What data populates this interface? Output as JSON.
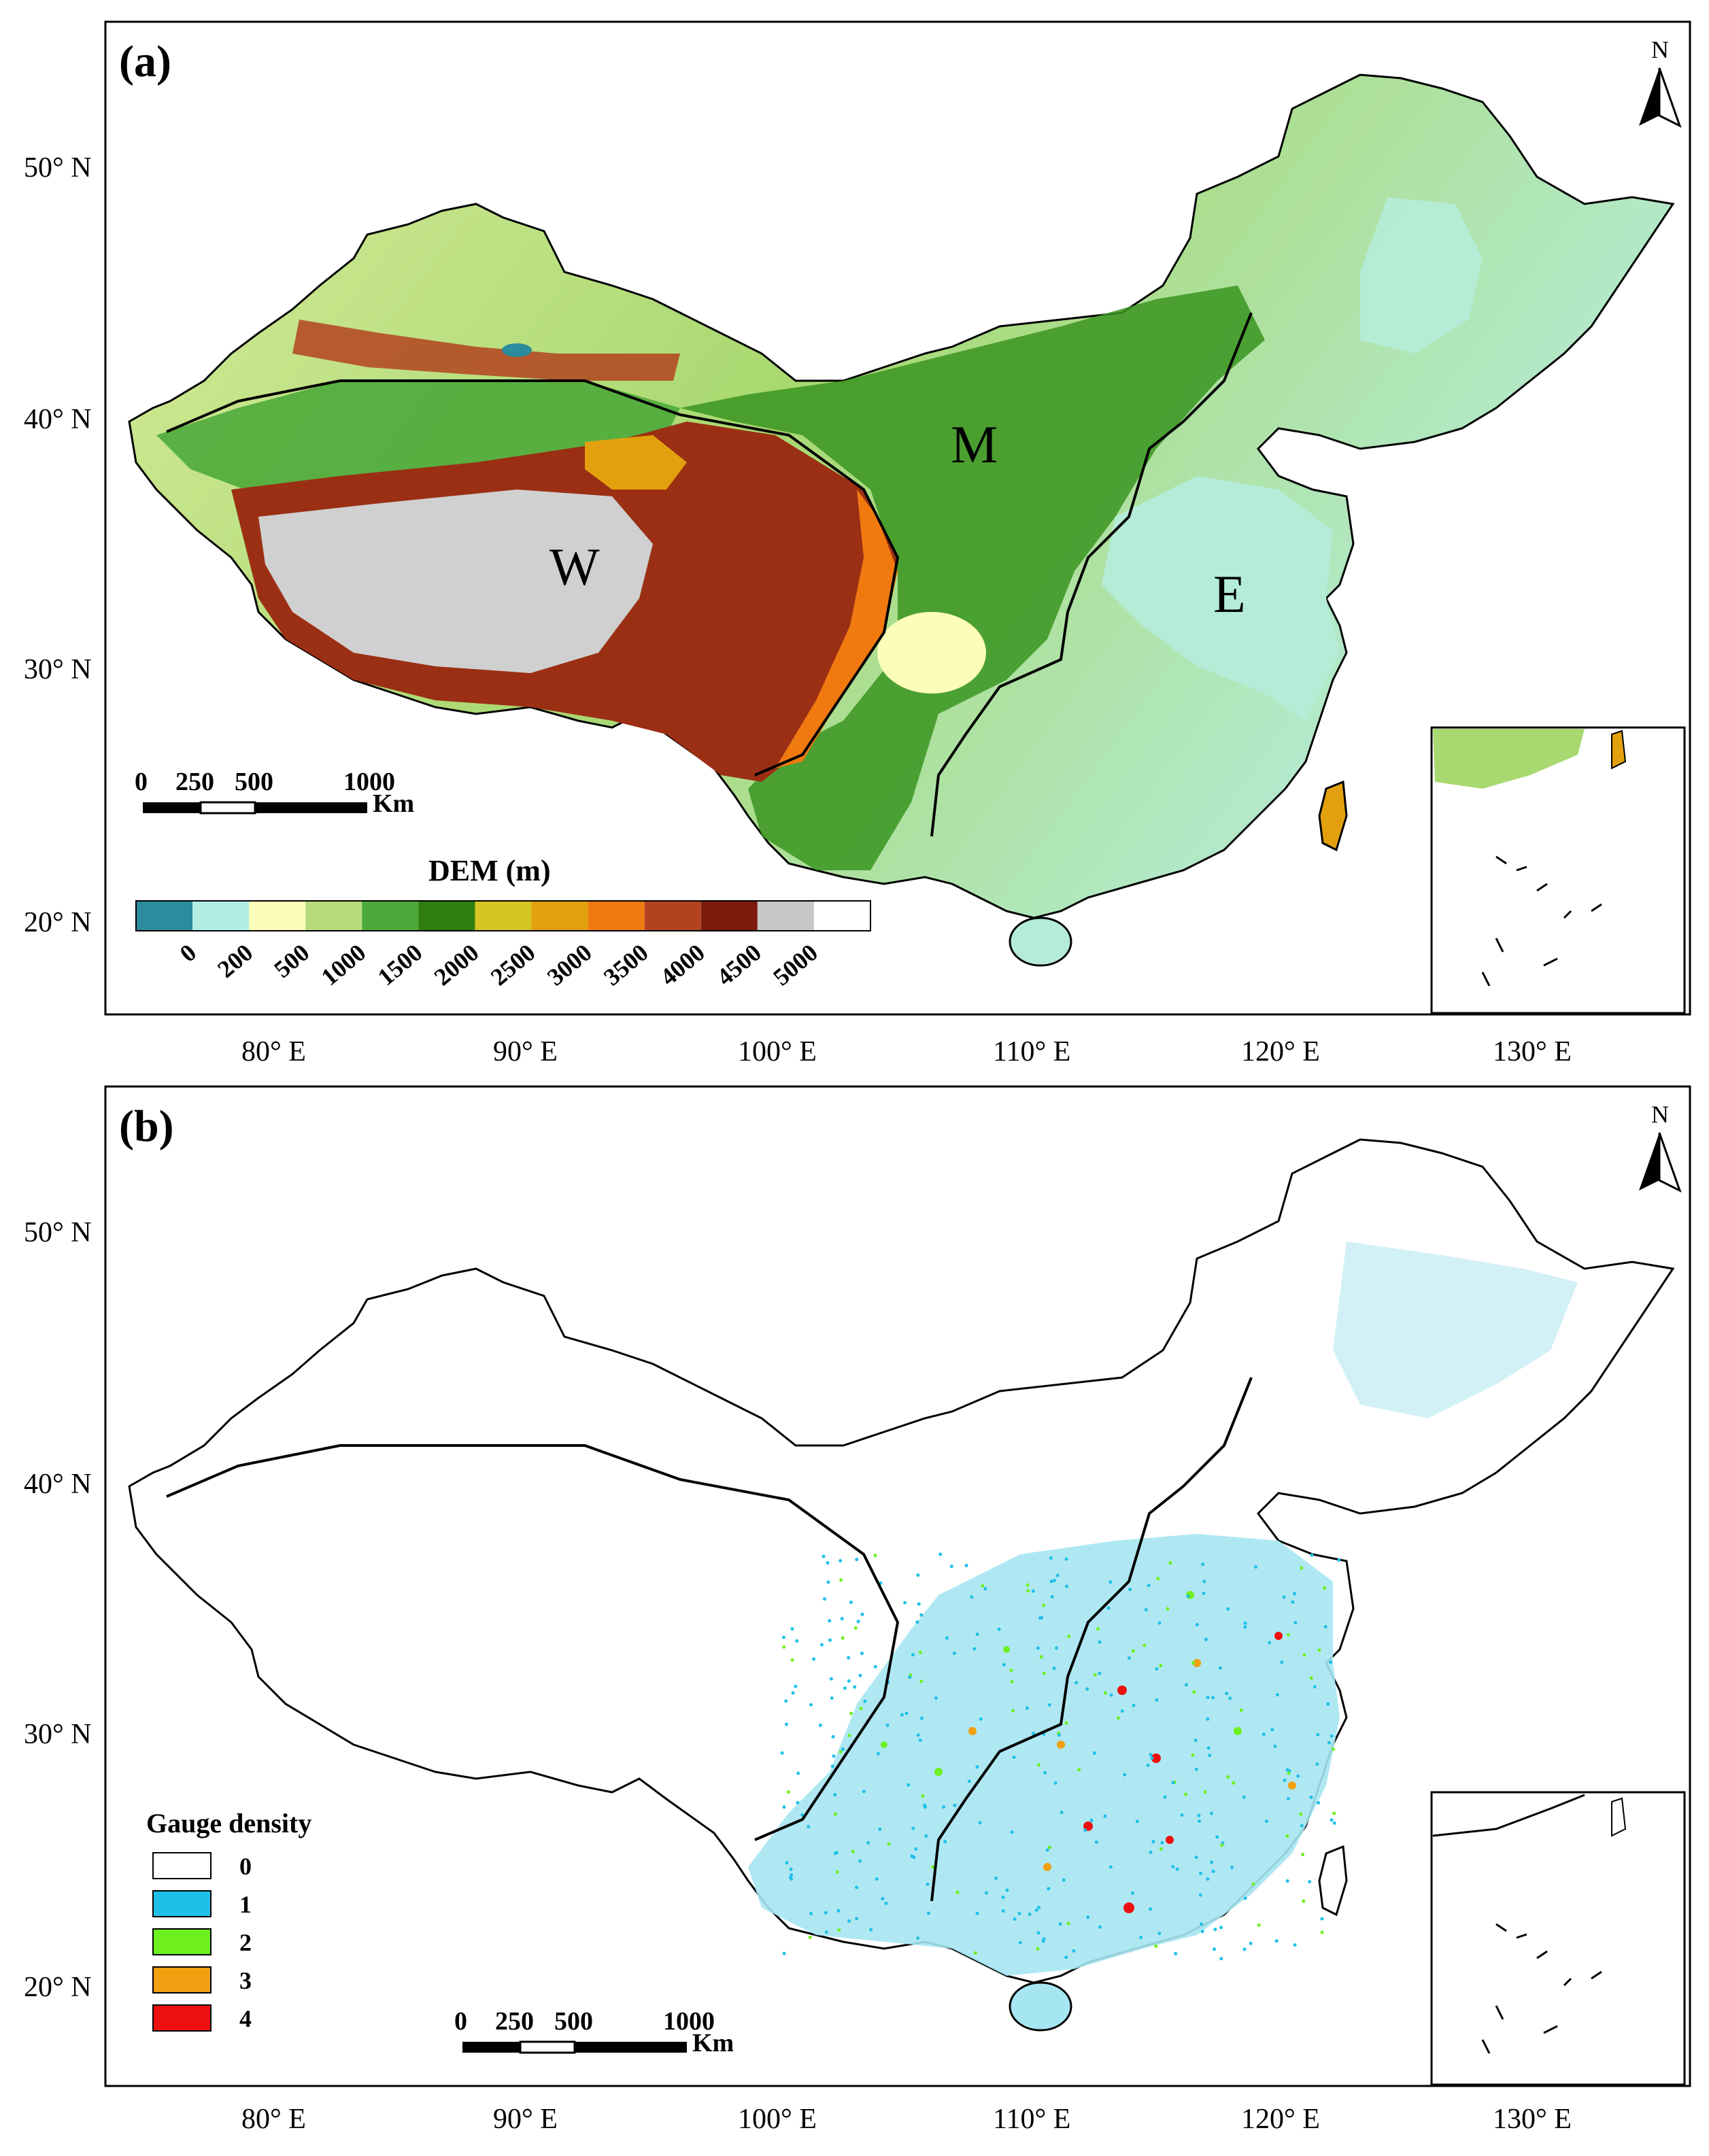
{
  "panel_a": {
    "label": "(a)",
    "latitude_labels": [
      "50° N",
      "40° N",
      "30° N",
      "20° N"
    ],
    "longitude_labels": [
      "80° E",
      "90° E",
      "100° E",
      "110° E",
      "120° E",
      "130° E"
    ],
    "north_arrow": "N",
    "regions": {
      "west": "W",
      "middle": "M",
      "east": "E"
    },
    "scale_bar": {
      "ticks": [
        "0",
        "250",
        "500",
        "1000"
      ],
      "unit": "Km"
    },
    "legend": {
      "title": "DEM (m)",
      "ticks": [
        "0",
        "200",
        "500",
        "1000",
        "1500",
        "2000",
        "2500",
        "3000",
        "3500",
        "4000",
        "4500",
        "5000"
      ],
      "colors": [
        "#2a8c9c",
        "#b2eee3",
        "#fcfdb9",
        "#b7db7b",
        "#4daa3a",
        "#2f7e10",
        "#d6c425",
        "#e3a00e",
        "#f07a10",
        "#b34320",
        "#7a1b0c",
        "#c8c8c8",
        "#ffffff"
      ]
    }
  },
  "panel_b": {
    "label": "(b)",
    "latitude_labels": [
      "50° N",
      "40° N",
      "30° N",
      "20° N"
    ],
    "longitude_labels": [
      "80° E",
      "90° E",
      "100° E",
      "110° E",
      "120° E",
      "130° E"
    ],
    "north_arrow": "N",
    "scale_bar": {
      "ticks": [
        "0",
        "250",
        "500",
        "1000"
      ],
      "unit": "Km"
    },
    "legend": {
      "title": "Gauge density",
      "items": [
        {
          "label": "0",
          "color": "#ffffff"
        },
        {
          "label": "1",
          "color": "#1fc0e8"
        },
        {
          "label": "2",
          "color": "#6ef01e"
        },
        {
          "label": "3",
          "color": "#f0a010"
        },
        {
          "label": "4",
          "color": "#ee1010"
        }
      ]
    }
  }
}
